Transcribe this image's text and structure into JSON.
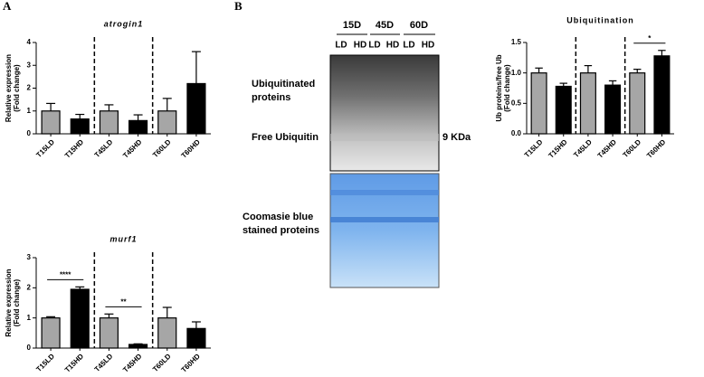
{
  "panels": [
    "A",
    "B"
  ],
  "chart_data": [
    {
      "type": "bar",
      "title": "atrogin1",
      "ylabel": [
        "Relative expression",
        "(Fold change)"
      ],
      "categories": [
        "T15LD",
        "T15HD",
        "T45LD",
        "T45HD",
        "T60LD",
        "T60HD"
      ],
      "values": [
        1.0,
        0.65,
        1.0,
        0.58,
        1.0,
        2.2
      ],
      "errors": [
        0.33,
        0.2,
        0.27,
        0.25,
        0.55,
        1.4
      ],
      "colors": [
        "#a6a6a6",
        "#000000",
        "#a6a6a6",
        "#000000",
        "#a6a6a6",
        "#000000"
      ],
      "ylim": [
        0,
        4
      ],
      "yticks": [
        0,
        1,
        2,
        3,
        4
      ],
      "annotations": []
    },
    {
      "type": "bar",
      "title": "murf1",
      "ylabel": [
        "Relative expression",
        "(Fold change)"
      ],
      "categories": [
        "T15LD",
        "T15HD",
        "T45LD",
        "T45HD",
        "T60LD",
        "T60HD"
      ],
      "values": [
        1.0,
        1.95,
        1.0,
        0.12,
        1.0,
        0.65
      ],
      "errors": [
        0.04,
        0.08,
        0.13,
        0.02,
        0.35,
        0.22
      ],
      "colors": [
        "#a6a6a6",
        "#000000",
        "#a6a6a6",
        "#000000",
        "#a6a6a6",
        "#000000"
      ],
      "ylim": [
        0,
        3
      ],
      "yticks": [
        0,
        1,
        2,
        3
      ],
      "annotations": [
        {
          "text": "****",
          "between": [
            "T15LD",
            "T15HD"
          ]
        },
        {
          "text": "**",
          "between": [
            "T45LD",
            "T45HD"
          ]
        }
      ]
    },
    {
      "type": "bar",
      "title": "Ubiquitination",
      "ylabel": [
        "Ub proteins/free Ub",
        "(Fold change)"
      ],
      "categories": [
        "T15LD",
        "T15HD",
        "T45LD",
        "T45HD",
        "T60LD",
        "T60HD"
      ],
      "values": [
        1.0,
        0.78,
        1.0,
        0.8,
        1.0,
        1.28
      ],
      "errors": [
        0.08,
        0.05,
        0.12,
        0.07,
        0.06,
        0.09
      ],
      "colors": [
        "#a6a6a6",
        "#000000",
        "#a6a6a6",
        "#000000",
        "#a6a6a6",
        "#000000"
      ],
      "ylim": [
        0,
        1.5
      ],
      "yticks": [
        {
          "value": 0,
          "label": "0.0"
        },
        {
          "value": 0.5,
          "label": "0.5"
        },
        {
          "value": 1,
          "label": "1.0"
        },
        {
          "value": 1.5,
          "label": "1.5"
        }
      ],
      "annotations": [
        {
          "text": "*",
          "between": [
            "T60LD",
            "T60HD"
          ]
        }
      ]
    }
  ],
  "blot": {
    "groups": [
      "15D",
      "45D",
      "60D"
    ],
    "lanes": [
      "LD",
      "HD",
      "LD",
      "HD",
      "LD",
      "HD"
    ],
    "labels": {
      "ubiquitinated": [
        "Ubiquitinated",
        "proteins"
      ],
      "free": "Free Ubiquitin",
      "marker": "9 KDa",
      "coomassie": [
        "Coomasie blue",
        "stained proteins"
      ]
    }
  }
}
